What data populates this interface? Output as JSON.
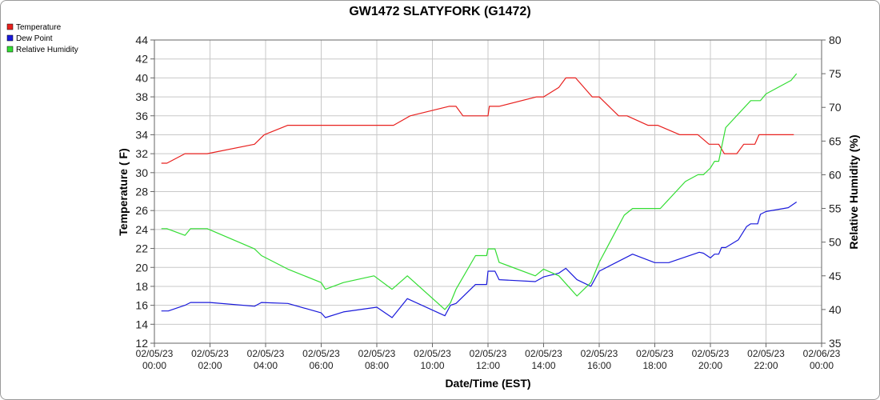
{
  "chart_data": {
    "type": "line",
    "title": "GW1472 SLATYFORK (G1472)",
    "xlabel": "Date/Time (EST)",
    "ylabel_left": "Temperature ( F)",
    "ylabel_right": "Relative Humidity (%)",
    "ylim_left": [
      12,
      44
    ],
    "ylim_right": [
      35,
      80
    ],
    "yticks_left": [
      "12",
      "14",
      "16",
      "18",
      "20",
      "22",
      "24",
      "26",
      "28",
      "30",
      "32",
      "34",
      "36",
      "38",
      "40",
      "42",
      "44"
    ],
    "yticks_right": [
      "35",
      "40",
      "45",
      "50",
      "55",
      "60",
      "65",
      "70",
      "75",
      "80"
    ],
    "xlim_hours": [
      0,
      24
    ],
    "xticks": [
      {
        "date": "02/05/23",
        "time": "00:00"
      },
      {
        "date": "02/05/23",
        "time": "02:00"
      },
      {
        "date": "02/05/23",
        "time": "04:00"
      },
      {
        "date": "02/05/23",
        "time": "06:00"
      },
      {
        "date": "02/05/23",
        "time": "08:00"
      },
      {
        "date": "02/05/23",
        "time": "10:00"
      },
      {
        "date": "02/05/23",
        "time": "12:00"
      },
      {
        "date": "02/05/23",
        "time": "14:00"
      },
      {
        "date": "02/05/23",
        "time": "16:00"
      },
      {
        "date": "02/05/23",
        "time": "18:00"
      },
      {
        "date": "02/05/23",
        "time": "20:00"
      },
      {
        "date": "02/05/23",
        "time": "22:00"
      },
      {
        "date": "02/06/23",
        "time": "00:00"
      }
    ],
    "grid": true,
    "legend_position": "top-left",
    "series": [
      {
        "name": "Temperature",
        "axis": "left",
        "color": "#e8201e",
        "points": [
          [
            0.25,
            31
          ],
          [
            0.45,
            31
          ],
          [
            1.1,
            32
          ],
          [
            1.9,
            32
          ],
          [
            3.6,
            33
          ],
          [
            3.95,
            34
          ],
          [
            4.8,
            35
          ],
          [
            8.6,
            35
          ],
          [
            9.2,
            36
          ],
          [
            10.6,
            37
          ],
          [
            10.85,
            37
          ],
          [
            11.1,
            36
          ],
          [
            12.0,
            36
          ],
          [
            12.05,
            37
          ],
          [
            12.4,
            37
          ],
          [
            13.75,
            38
          ],
          [
            14.0,
            38
          ],
          [
            14.55,
            39
          ],
          [
            14.8,
            40
          ],
          [
            15.15,
            40
          ],
          [
            15.75,
            38
          ],
          [
            16.0,
            38
          ],
          [
            16.7,
            36
          ],
          [
            17.0,
            36
          ],
          [
            17.75,
            35
          ],
          [
            18.1,
            35
          ],
          [
            18.9,
            34
          ],
          [
            19.55,
            34
          ],
          [
            19.95,
            33
          ],
          [
            20.3,
            33
          ],
          [
            20.5,
            32
          ],
          [
            20.95,
            32
          ],
          [
            21.2,
            33
          ],
          [
            21.6,
            33
          ],
          [
            21.75,
            34
          ],
          [
            23.0,
            34
          ]
        ]
      },
      {
        "name": "Dew Point",
        "axis": "left",
        "color": "#1a1adb",
        "points": [
          [
            0.25,
            15.4
          ],
          [
            0.5,
            15.4
          ],
          [
            1.1,
            16.0
          ],
          [
            1.3,
            16.3
          ],
          [
            2.0,
            16.3
          ],
          [
            3.6,
            15.9
          ],
          [
            3.85,
            16.3
          ],
          [
            4.8,
            16.2
          ],
          [
            6.0,
            15.2
          ],
          [
            6.15,
            14.7
          ],
          [
            6.8,
            15.3
          ],
          [
            8.0,
            15.8
          ],
          [
            8.55,
            14.7
          ],
          [
            9.1,
            16.7
          ],
          [
            10.45,
            14.9
          ],
          [
            10.65,
            16.0
          ],
          [
            10.85,
            16.2
          ],
          [
            11.55,
            18.2
          ],
          [
            11.95,
            18.2
          ],
          [
            12.0,
            19.6
          ],
          [
            12.25,
            19.6
          ],
          [
            12.4,
            18.7
          ],
          [
            13.7,
            18.5
          ],
          [
            14.0,
            19.0
          ],
          [
            14.55,
            19.4
          ],
          [
            14.8,
            19.9
          ],
          [
            15.2,
            18.7
          ],
          [
            15.7,
            18.0
          ],
          [
            16.0,
            19.6
          ],
          [
            17.2,
            21.4
          ],
          [
            18.0,
            20.5
          ],
          [
            18.5,
            20.5
          ],
          [
            19.6,
            21.6
          ],
          [
            19.75,
            21.5
          ],
          [
            20.0,
            21.0
          ],
          [
            20.15,
            21.4
          ],
          [
            20.3,
            21.4
          ],
          [
            20.4,
            22.1
          ],
          [
            20.55,
            22.1
          ],
          [
            21.0,
            22.9
          ],
          [
            21.3,
            24.3
          ],
          [
            21.45,
            24.6
          ],
          [
            21.7,
            24.6
          ],
          [
            21.8,
            25.6
          ],
          [
            22.0,
            25.9
          ],
          [
            22.8,
            26.3
          ],
          [
            23.1,
            26.9
          ]
        ]
      },
      {
        "name": "Relative Humidity",
        "axis": "right",
        "color": "#33dd33",
        "points": [
          [
            0.25,
            52
          ],
          [
            0.45,
            52
          ],
          [
            1.1,
            51
          ],
          [
            1.3,
            52
          ],
          [
            1.9,
            52
          ],
          [
            3.6,
            49
          ],
          [
            3.85,
            48
          ],
          [
            4.8,
            46
          ],
          [
            6.0,
            44
          ],
          [
            6.15,
            43
          ],
          [
            6.8,
            44
          ],
          [
            7.9,
            45
          ],
          [
            8.55,
            43
          ],
          [
            9.1,
            45
          ],
          [
            10.45,
            40
          ],
          [
            10.65,
            41
          ],
          [
            10.85,
            43
          ],
          [
            11.55,
            48
          ],
          [
            11.95,
            48
          ],
          [
            12.0,
            49
          ],
          [
            12.25,
            49
          ],
          [
            12.4,
            47
          ],
          [
            13.7,
            45
          ],
          [
            14.0,
            46
          ],
          [
            14.55,
            45
          ],
          [
            15.2,
            42
          ],
          [
            15.7,
            44
          ],
          [
            16.0,
            47
          ],
          [
            16.9,
            54
          ],
          [
            17.2,
            55
          ],
          [
            18.2,
            55
          ],
          [
            19.1,
            59
          ],
          [
            19.55,
            60
          ],
          [
            19.75,
            60
          ],
          [
            20.0,
            61
          ],
          [
            20.15,
            62
          ],
          [
            20.3,
            62
          ],
          [
            20.45,
            65
          ],
          [
            20.55,
            67
          ],
          [
            21.45,
            71
          ],
          [
            21.8,
            71
          ],
          [
            22.0,
            72
          ],
          [
            22.9,
            74
          ],
          [
            23.1,
            75
          ]
        ]
      }
    ]
  }
}
